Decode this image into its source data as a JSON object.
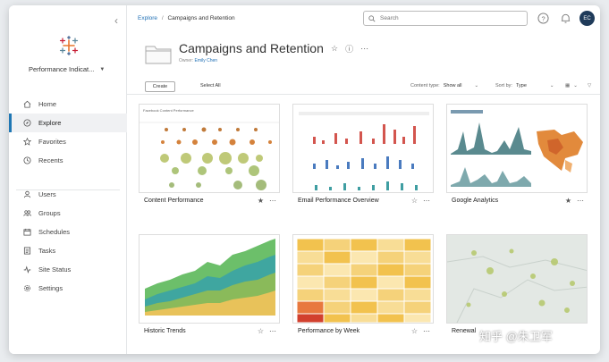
{
  "breadcrumb": {
    "root": "Explore",
    "separator": "/",
    "current": "Campaigns and Retention"
  },
  "search": {
    "placeholder": "Search"
  },
  "user": {
    "initials": "EC"
  },
  "sidebar": {
    "site_name": "Performance Indicat...",
    "items": [
      {
        "label": "Home",
        "icon": "home-icon"
      },
      {
        "label": "Explore",
        "icon": "explore-icon",
        "active": true
      },
      {
        "label": "Favorites",
        "icon": "star-icon"
      },
      {
        "label": "Recents",
        "icon": "clock-icon"
      }
    ],
    "admin_items": [
      {
        "label": "Users",
        "icon": "users-icon"
      },
      {
        "label": "Groups",
        "icon": "groups-icon"
      },
      {
        "label": "Schedules",
        "icon": "calendar-icon"
      },
      {
        "label": "Tasks",
        "icon": "tasks-icon"
      },
      {
        "label": "Site Status",
        "icon": "status-icon"
      },
      {
        "label": "Settings",
        "icon": "gear-icon"
      }
    ]
  },
  "project": {
    "title": "Campaigns and Retention",
    "owner_label": "Owner:",
    "owner_name": "Emily Chen"
  },
  "toolbar": {
    "create_label": "Create",
    "select_all_label": "Select All",
    "content_type_label": "Content type:",
    "content_type_value": "Show all",
    "sort_label": "Sort by:",
    "sort_value": "Type"
  },
  "cards": [
    {
      "name": "Content Performance",
      "favorited": true,
      "thumb_title": "Facebook Content Performance"
    },
    {
      "name": "Email Performance Overview",
      "favorited": false
    },
    {
      "name": "Google Analytics",
      "favorited": true
    },
    {
      "name": "Historic Trends",
      "favorited": false
    },
    {
      "name": "Performance by Week",
      "favorited": false
    },
    {
      "name": "Renewal",
      "favorited": false
    }
  ],
  "watermark": "知乎 @朱卫军",
  "colors": {
    "accent": "#1f77b4",
    "link": "#1f6fb5",
    "avatar": "#1f3b5a"
  }
}
